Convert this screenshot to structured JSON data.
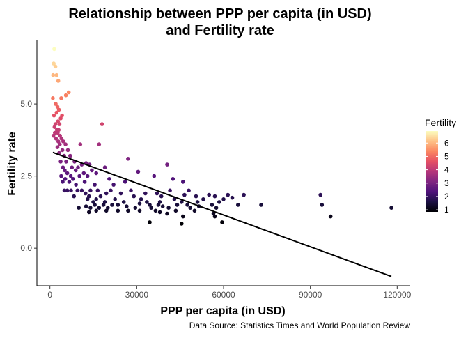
{
  "chart_data": {
    "type": "scatter",
    "title_lines": [
      "Relationship between PPP per capita (in USD)",
      "and Fertility rate"
    ],
    "xlabel": "PPP per capita (in USD)",
    "ylabel": "Fertility rate",
    "caption": "Data Source: Statistics Times and World Population Review",
    "xlim": [
      -4500,
      124500
    ],
    "ylim": [
      -1.3,
      7.2
    ],
    "x_ticks": [
      0,
      30000,
      60000,
      90000,
      120000
    ],
    "x_tick_labels": [
      "0",
      "30000",
      "60000",
      "90000",
      "120000"
    ],
    "y_ticks": [
      0,
      2.5,
      5
    ],
    "y_tick_labels": [
      "0.0",
      "2.5",
      "5.0"
    ],
    "grid": false,
    "legend": {
      "title": "Fertility",
      "placement": "right",
      "range": [
        0.85,
        6.9
      ],
      "ticks": [
        1,
        2,
        3,
        4,
        5,
        6
      ],
      "tick_labels": [
        "1",
        "2",
        "3",
        "4",
        "5",
        "6"
      ],
      "palette": [
        "#000004",
        "#1c1044",
        "#4f127b",
        "#812581",
        "#b5367a",
        "#e55064",
        "#fb8761",
        "#fec287",
        "#fcfdbf"
      ]
    },
    "trend_line": {
      "x": [
        1000,
        118000
      ],
      "y": [
        3.32,
        -0.98
      ],
      "color": "#000000"
    },
    "points": [
      [
        1500,
        6.9
      ],
      [
        1300,
        6.4
      ],
      [
        1900,
        6.3
      ],
      [
        1100,
        6.0
      ],
      [
        2300,
        6.0
      ],
      [
        2900,
        5.8
      ],
      [
        6500,
        5.4
      ],
      [
        5500,
        5.3
      ],
      [
        3900,
        5.2
      ],
      [
        1000,
        5.2
      ],
      [
        2000,
        5.0
      ],
      [
        2600,
        4.9
      ],
      [
        3100,
        4.8
      ],
      [
        2300,
        4.7
      ],
      [
        1400,
        4.6
      ],
      [
        4200,
        4.6
      ],
      [
        3700,
        4.5
      ],
      [
        2800,
        4.4
      ],
      [
        18000,
        4.3
      ],
      [
        1900,
        4.3
      ],
      [
        3300,
        4.3
      ],
      [
        1600,
        4.2
      ],
      [
        2400,
        4.1
      ],
      [
        3000,
        4.1
      ],
      [
        1700,
        4.0
      ],
      [
        2700,
        4.0
      ],
      [
        1200,
        3.9
      ],
      [
        3500,
        3.9
      ],
      [
        2100,
        3.8
      ],
      [
        4000,
        3.8
      ],
      [
        2900,
        3.7
      ],
      [
        4600,
        3.7
      ],
      [
        3400,
        3.6
      ],
      [
        5400,
        3.6
      ],
      [
        10500,
        3.6
      ],
      [
        17000,
        3.6
      ],
      [
        2600,
        3.5
      ],
      [
        4300,
        3.4
      ],
      [
        6200,
        3.4
      ],
      [
        3200,
        3.3
      ],
      [
        7000,
        3.2
      ],
      [
        4900,
        3.2
      ],
      [
        27000,
        3.1
      ],
      [
        3700,
        3.0
      ],
      [
        5600,
        3.0
      ],
      [
        8500,
        3.0
      ],
      [
        12500,
        2.95
      ],
      [
        11000,
        2.9
      ],
      [
        13700,
        2.9
      ],
      [
        40500,
        2.9
      ],
      [
        4500,
        2.8
      ],
      [
        7600,
        2.8
      ],
      [
        9700,
        2.8
      ],
      [
        19000,
        2.8
      ],
      [
        5100,
        2.7
      ],
      [
        8900,
        2.7
      ],
      [
        14500,
        2.7
      ],
      [
        30500,
        2.65
      ],
      [
        6000,
        2.6
      ],
      [
        11700,
        2.6
      ],
      [
        16000,
        2.6
      ],
      [
        3900,
        2.5
      ],
      [
        7200,
        2.5
      ],
      [
        10200,
        2.5
      ],
      [
        13000,
        2.5
      ],
      [
        36000,
        2.5
      ],
      [
        5300,
        2.4
      ],
      [
        8000,
        2.4
      ],
      [
        20500,
        2.4
      ],
      [
        42500,
        2.4
      ],
      [
        4400,
        2.3
      ],
      [
        6700,
        2.3
      ],
      [
        12000,
        2.3
      ],
      [
        26000,
        2.3
      ],
      [
        46000,
        2.3
      ],
      [
        9000,
        2.2
      ],
      [
        15500,
        2.2
      ],
      [
        22000,
        2.2
      ],
      [
        5000,
        2.0
      ],
      [
        6000,
        2.0
      ],
      [
        7300,
        2.0
      ],
      [
        9500,
        2.0
      ],
      [
        11000,
        2.0
      ],
      [
        14000,
        2.0
      ],
      [
        16500,
        2.0
      ],
      [
        21000,
        2.0
      ],
      [
        28000,
        2.0
      ],
      [
        41500,
        2.0
      ],
      [
        48000,
        2.0
      ],
      [
        12300,
        1.9
      ],
      [
        19500,
        1.9
      ],
      [
        24500,
        1.9
      ],
      [
        33000,
        1.9
      ],
      [
        37000,
        1.9
      ],
      [
        46500,
        1.85
      ],
      [
        55000,
        1.85
      ],
      [
        61500,
        1.85
      ],
      [
        67000,
        1.85
      ],
      [
        93500,
        1.85
      ],
      [
        8300,
        1.8
      ],
      [
        13500,
        1.8
      ],
      [
        17500,
        1.8
      ],
      [
        29000,
        1.8
      ],
      [
        38500,
        1.8
      ],
      [
        50500,
        1.8
      ],
      [
        57000,
        1.8
      ],
      [
        63000,
        1.75
      ],
      [
        13000,
        1.7
      ],
      [
        16000,
        1.7
      ],
      [
        22500,
        1.7
      ],
      [
        31500,
        1.7
      ],
      [
        43000,
        1.7
      ],
      [
        53000,
        1.7
      ],
      [
        60000,
        1.7
      ],
      [
        15000,
        1.6
      ],
      [
        19000,
        1.6
      ],
      [
        25500,
        1.6
      ],
      [
        33500,
        1.6
      ],
      [
        38000,
        1.6
      ],
      [
        45500,
        1.6
      ],
      [
        51000,
        1.6
      ],
      [
        58500,
        1.6
      ],
      [
        15500,
        1.5
      ],
      [
        18500,
        1.5
      ],
      [
        21500,
        1.5
      ],
      [
        23500,
        1.5
      ],
      [
        31000,
        1.55
      ],
      [
        34500,
        1.5
      ],
      [
        37500,
        1.5
      ],
      [
        44000,
        1.5
      ],
      [
        47500,
        1.5
      ],
      [
        56000,
        1.5
      ],
      [
        65000,
        1.5
      ],
      [
        73000,
        1.5
      ],
      [
        94000,
        1.5
      ],
      [
        12500,
        1.45
      ],
      [
        26500,
        1.45
      ],
      [
        39000,
        1.45
      ],
      [
        51500,
        1.45
      ],
      [
        10000,
        1.4
      ],
      [
        14000,
        1.4
      ],
      [
        17000,
        1.4
      ],
      [
        20000,
        1.4
      ],
      [
        29500,
        1.4
      ],
      [
        35000,
        1.4
      ],
      [
        41000,
        1.4
      ],
      [
        48500,
        1.4
      ],
      [
        57500,
        1.4
      ],
      [
        118000,
        1.4
      ],
      [
        16000,
        1.3
      ],
      [
        19500,
        1.3
      ],
      [
        23500,
        1.3
      ],
      [
        27000,
        1.3
      ],
      [
        31000,
        1.3
      ],
      [
        36500,
        1.3
      ],
      [
        43500,
        1.3
      ],
      [
        50000,
        1.3
      ],
      [
        13500,
        1.25
      ],
      [
        38000,
        1.25
      ],
      [
        40500,
        1.2
      ],
      [
        56500,
        1.2
      ],
      [
        46000,
        1.1
      ],
      [
        57000,
        1.1
      ],
      [
        97000,
        1.1
      ],
      [
        34500,
        0.9
      ],
      [
        59500,
        0.9
      ],
      [
        45500,
        0.85
      ]
    ]
  }
}
